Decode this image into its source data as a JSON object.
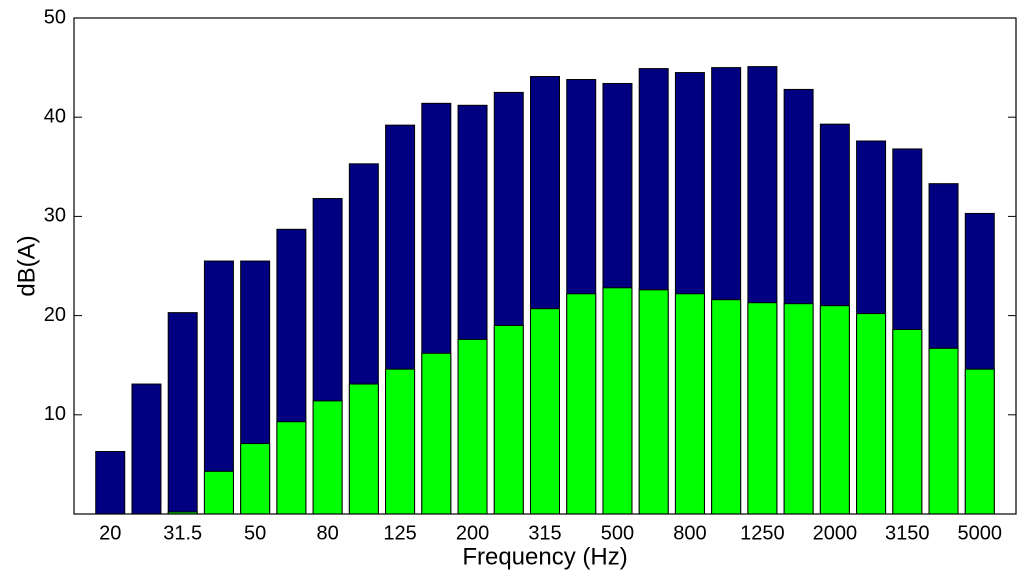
{
  "chart_data": {
    "type": "bar",
    "x_label": "Frequency (Hz)",
    "y_label": "dB(A)",
    "categories": [
      "20",
      null,
      "31.5",
      null,
      "50",
      null,
      "80",
      null,
      "125",
      null,
      "200",
      null,
      "315",
      null,
      "500",
      null,
      "800",
      null,
      "1250",
      null,
      "2000",
      null,
      "3150",
      null,
      "5000"
    ],
    "series": [
      {
        "color": "#000080",
        "values": [
          6.3,
          13.1,
          20.3,
          25.5,
          25.5,
          28.7,
          31.8,
          35.3,
          39.2,
          41.4,
          41.2,
          42.5,
          44.1,
          43.8,
          43.4,
          44.9,
          44.5,
          45.0,
          45.1,
          42.8,
          39.3,
          37.6,
          36.8,
          33.3,
          30.3
        ]
      },
      {
        "color": "#00ff00",
        "values": [
          null,
          null,
          0.2,
          4.3,
          7.1,
          9.3,
          11.4,
          13.1,
          14.6,
          16.2,
          17.6,
          19.0,
          20.7,
          22.2,
          22.8,
          22.6,
          22.2,
          21.6,
          21.3,
          21.2,
          21.0,
          20.2,
          18.6,
          16.7,
          14.6
        ]
      }
    ],
    "ylim": [
      0,
      50
    ],
    "yticks": [
      10,
      20,
      30,
      40,
      50
    ],
    "overlap": true
  }
}
